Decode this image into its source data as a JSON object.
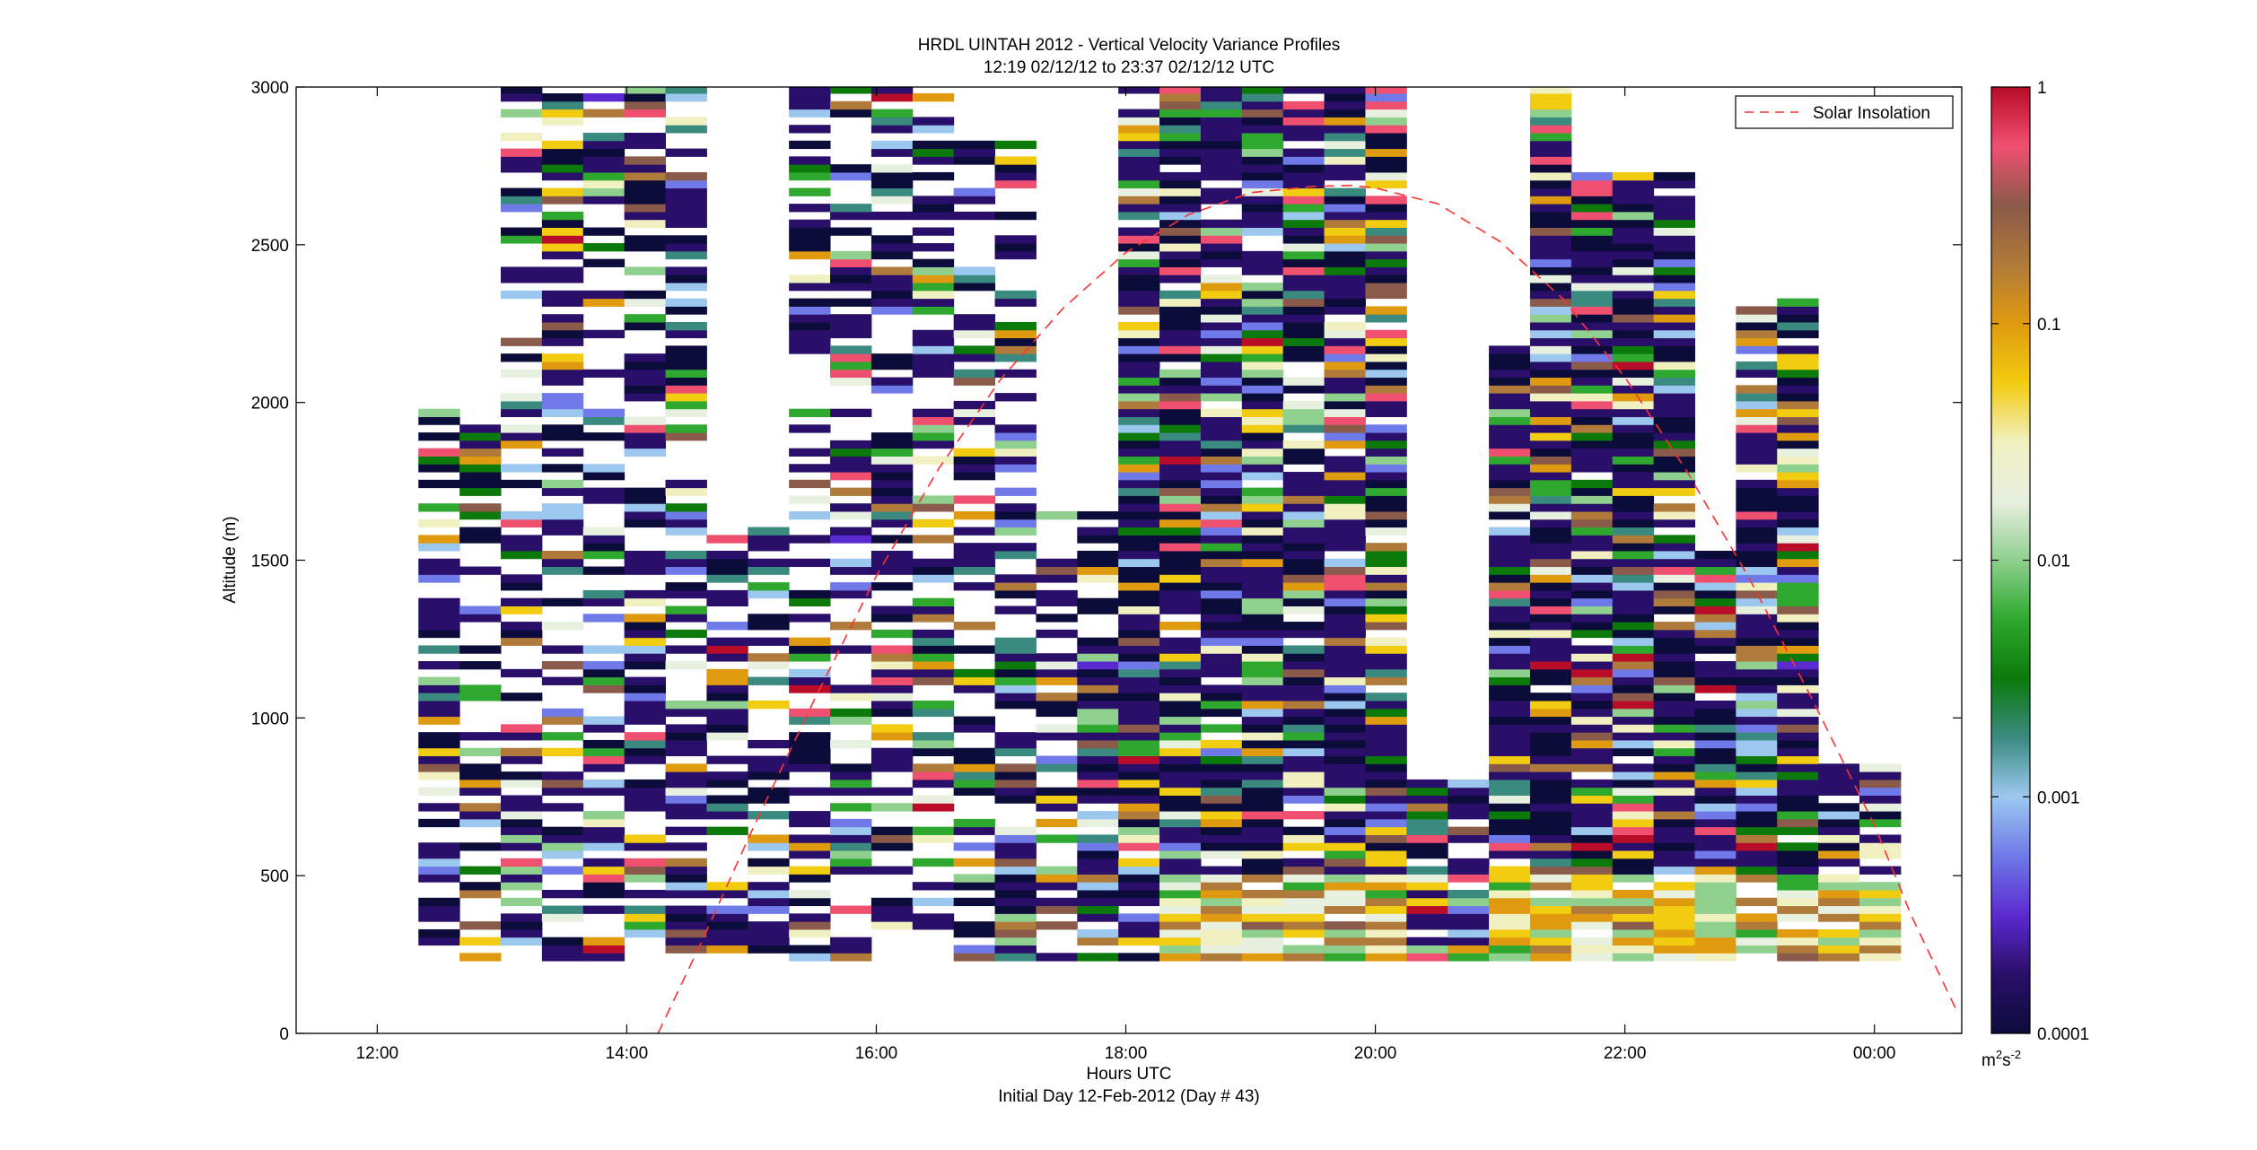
{
  "chart_data": {
    "type": "heatmap",
    "title_line1": "HRDL UINTAH 2012 - Vertical Velocity Variance Profiles",
    "title_line2": "12:19 02/12/12 to 23:37 02/12/12  UTC",
    "xlabel": "Hours UTC",
    "xlabel_sub": "Initial Day 12-Feb-2012 (Day # 43)",
    "ylabel": "Altitude (m)",
    "xlim": [
      11.35,
      24.7
    ],
    "ylim": [
      0,
      3000
    ],
    "x_ticks": [
      12,
      14,
      16,
      18,
      20,
      22,
      24
    ],
    "x_tick_labels": [
      "12:00",
      "14:00",
      "16:00",
      "18:00",
      "20:00",
      "22:00",
      "00:00"
    ],
    "y_ticks": [
      0,
      500,
      1000,
      1500,
      2000,
      2500,
      3000
    ],
    "y_tick_labels": [
      "0",
      "500",
      "1000",
      "1500",
      "2000",
      "2500",
      "3000"
    ],
    "colorbar": {
      "scale": "log",
      "range": [
        0.0001,
        1
      ],
      "ticks": [
        0.0001,
        0.001,
        0.01,
        0.1,
        1
      ],
      "tick_labels": [
        "0.0001",
        "0.001",
        "0.01",
        "0.1",
        "1"
      ],
      "unit_base": "m",
      "unit_sup1": "2",
      "unit_mid": "s",
      "unit_sup2": "-2",
      "colormap": [
        "#0c0c3a",
        "#2a0f6a",
        "#5a2ad0",
        "#6f7ae8",
        "#9cc8f0",
        "#3b8a80",
        "#0b7a0b",
        "#2ea82e",
        "#8fd08f",
        "#e8f0e0",
        "#f0f0c0",
        "#f2cc10",
        "#e09a10",
        "#b07a3a",
        "#8a5a4a",
        "#f05070",
        "#b80c28"
      ]
    },
    "series": [
      {
        "name": "Solar Insolation",
        "style": "dashed",
        "color": "#ff3030",
        "x": [
          14.25,
          14.6,
          15.0,
          15.5,
          16.0,
          16.5,
          17.0,
          17.5,
          18.0,
          18.5,
          19.0,
          19.5,
          19.8,
          20.0,
          20.5,
          21.0,
          21.5,
          22.0,
          22.5,
          23.0,
          23.5,
          24.0,
          24.3,
          24.65
        ],
        "y": [
          0,
          290,
          640,
          1055,
          1450,
          1790,
          2075,
          2300,
          2475,
          2595,
          2665,
          2685,
          2688,
          2680,
          2630,
          2510,
          2330,
          2080,
          1780,
          1440,
          1060,
          660,
          370,
          80
        ]
      },
      {
        "name": "Variance profiles",
        "type": "heatmap",
        "x_start": 12.33,
        "x_end": 24.0,
        "profile_width_hours": 0.33,
        "note": "approx. shown visually"
      }
    ],
    "legend": {
      "position": "top-right",
      "entries": [
        "Solar Insolation"
      ]
    }
  }
}
